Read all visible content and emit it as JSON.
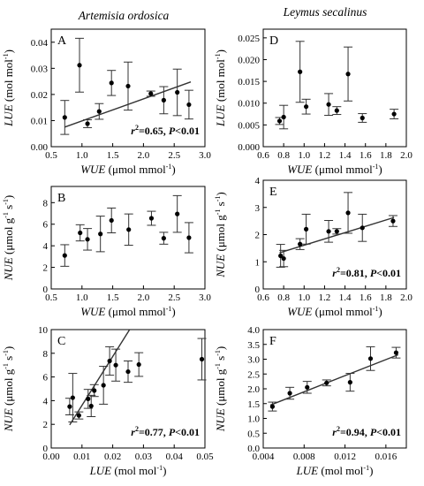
{
  "columns": {
    "left_title": "Artemisia ordosica",
    "right_title": "Leymus secalinus"
  },
  "chart_data": [
    {
      "panel": "A",
      "type": "scatter",
      "xlabel_main": "WUE",
      "xlabel_unit": "(μmol mmol",
      "ylabel_main": "LUE",
      "ylabel_unit": "(mol mol",
      "xlim": [
        0.5,
        3.0
      ],
      "ylim": [
        0.0,
        0.045
      ],
      "xticks": [
        "0.5",
        "1.0",
        "1.5",
        "2.0",
        "2.5",
        "3.0"
      ],
      "yticks": [
        "0.00",
        "0.01",
        "0.02",
        "0.03",
        "0.04"
      ],
      "points": [
        {
          "x": 0.72,
          "y": 0.0112,
          "err": 0.0065
        },
        {
          "x": 0.96,
          "y": 0.0312,
          "err": 0.0103
        },
        {
          "x": 1.09,
          "y": 0.0088,
          "err": 0.0015
        },
        {
          "x": 1.28,
          "y": 0.0135,
          "err": 0.003
        },
        {
          "x": 1.48,
          "y": 0.0244,
          "err": 0.0048
        },
        {
          "x": 1.75,
          "y": 0.0232,
          "err": 0.0092
        },
        {
          "x": 2.12,
          "y": 0.0203,
          "err": 0.001
        },
        {
          "x": 2.33,
          "y": 0.0178,
          "err": 0.0052
        },
        {
          "x": 2.55,
          "y": 0.0208,
          "err": 0.0089
        },
        {
          "x": 2.74,
          "y": 0.0161,
          "err": 0.0055
        }
      ],
      "fit": {
        "x0": 0.72,
        "y0": 0.0075,
        "x1": 2.77,
        "y1": 0.0248
      },
      "annotation": {
        "r": "r",
        "sup": "2",
        "text": "=0.65, ",
        "p": "P",
        "ptext": "<0.01"
      }
    },
    {
      "panel": "D",
      "type": "scatter",
      "xlabel_main": "WUE",
      "xlabel_unit": "(μmol mmol",
      "ylabel_main": "LUE",
      "ylabel_unit": "(mol mol",
      "xlim": [
        0.6,
        2.0
      ],
      "ylim": [
        0.0,
        0.027
      ],
      "xticks": [
        "0.6",
        "0.8",
        "1.0",
        "1.2",
        "1.4",
        "1.6",
        "1.8",
        "2.0"
      ],
      "yticks": [
        "0.000",
        "0.005",
        "0.010",
        "0.015",
        "0.020",
        "0.025"
      ],
      "points": [
        {
          "x": 0.76,
          "y": 0.0059,
          "err": 0.0008
        },
        {
          "x": 0.8,
          "y": 0.0068,
          "err": 0.0027
        },
        {
          "x": 0.96,
          "y": 0.0172,
          "err": 0.007
        },
        {
          "x": 1.02,
          "y": 0.0092,
          "err": 0.0017
        },
        {
          "x": 1.24,
          "y": 0.0097,
          "err": 0.0025
        },
        {
          "x": 1.32,
          "y": 0.0083,
          "err": 0.0009
        },
        {
          "x": 1.43,
          "y": 0.0167,
          "err": 0.0062
        },
        {
          "x": 1.57,
          "y": 0.0066,
          "err": 0.001
        },
        {
          "x": 1.88,
          "y": 0.0075,
          "err": 0.0011
        }
      ],
      "fit": null,
      "annotation": null
    },
    {
      "panel": "B",
      "type": "scatter",
      "xlabel_main": "WUE",
      "xlabel_unit": "(μmol mmol",
      "ylabel_main": "NUE",
      "ylabel_unit": "(μmol g",
      "xlim": [
        0.5,
        3.0
      ],
      "ylim": [
        0,
        9.5
      ],
      "xticks": [
        "0.5",
        "1.0",
        "1.5",
        "2.0",
        "2.5",
        "3.0"
      ],
      "yticks": [
        "0",
        "2",
        "4",
        "6",
        "8"
      ],
      "points": [
        {
          "x": 0.72,
          "y": 3.1,
          "err": 1.0
        },
        {
          "x": 0.97,
          "y": 5.2,
          "err": 0.75
        },
        {
          "x": 1.09,
          "y": 4.6,
          "err": 1.0
        },
        {
          "x": 1.3,
          "y": 5.1,
          "err": 1.65
        },
        {
          "x": 1.48,
          "y": 6.35,
          "err": 1.15
        },
        {
          "x": 1.76,
          "y": 5.5,
          "err": 1.45
        },
        {
          "x": 2.13,
          "y": 6.55,
          "err": 0.65
        },
        {
          "x": 2.33,
          "y": 4.7,
          "err": 0.55
        },
        {
          "x": 2.55,
          "y": 6.95,
          "err": 1.7
        },
        {
          "x": 2.74,
          "y": 4.75,
          "err": 1.4
        }
      ],
      "fit": null,
      "annotation": null
    },
    {
      "panel": "E",
      "type": "scatter",
      "xlabel_main": "WUE",
      "xlabel_unit": "(μmol mmol",
      "ylabel_main": "NUE",
      "ylabel_unit": "(μmol g",
      "xlim": [
        0.6,
        2.0
      ],
      "ylim": [
        0,
        4
      ],
      "xticks": [
        "0.6",
        "0.8",
        "1.0",
        "1.2",
        "1.4",
        "1.6",
        "1.8",
        "2.0"
      ],
      "yticks": [
        "0",
        "1",
        "2",
        "3",
        "4"
      ],
      "points": [
        {
          "x": 0.77,
          "y": 1.22,
          "err": 0.42
        },
        {
          "x": 0.8,
          "y": 1.12,
          "err": 0.3
        },
        {
          "x": 0.96,
          "y": 1.65,
          "err": 0.2
        },
        {
          "x": 1.02,
          "y": 2.2,
          "err": 0.55
        },
        {
          "x": 1.24,
          "y": 2.12,
          "err": 0.4
        },
        {
          "x": 1.32,
          "y": 2.12,
          "err": 0.1
        },
        {
          "x": 1.43,
          "y": 2.8,
          "err": 0.75
        },
        {
          "x": 1.57,
          "y": 2.25,
          "err": 0.5
        },
        {
          "x": 1.87,
          "y": 2.5,
          "err": 0.2
        }
      ],
      "fit": {
        "x0": 0.76,
        "y0": 1.33,
        "x1": 1.88,
        "y1": 2.63
      },
      "annotation": {
        "r": "r",
        "sup": "2",
        "text": "=0.81, ",
        "p": "P",
        "ptext": "<0.01"
      }
    },
    {
      "panel": "C",
      "type": "scatter",
      "xlabel_main": "LUE",
      "xlabel_unit": "(mol mol",
      "ylabel_main": "NUE",
      "ylabel_unit": "(μmol g",
      "xlim": [
        0.0,
        0.05
      ],
      "ylim": [
        0,
        10
      ],
      "xticks": [
        "0.00",
        "0.01",
        "0.02",
        "0.03",
        "0.04",
        "0.05"
      ],
      "yticks": [
        "0",
        "2",
        "4",
        "6",
        "8",
        "10"
      ],
      "points": [
        {
          "x": 0.006,
          "y": 3.5,
          "err": 0.7
        },
        {
          "x": 0.007,
          "y": 4.25,
          "err": 2.05
        },
        {
          "x": 0.009,
          "y": 2.75,
          "err": 0.3
        },
        {
          "x": 0.012,
          "y": 4.15,
          "err": 0.8
        },
        {
          "x": 0.013,
          "y": 3.55,
          "err": 0.9
        },
        {
          "x": 0.014,
          "y": 4.85,
          "err": 0.5
        },
        {
          "x": 0.017,
          "y": 5.3,
          "err": 1.6
        },
        {
          "x": 0.019,
          "y": 7.35,
          "err": 1.2
        },
        {
          "x": 0.021,
          "y": 7.0,
          "err": 1.35
        },
        {
          "x": 0.025,
          "y": 6.45,
          "err": 0.9
        },
        {
          "x": 0.0285,
          "y": 7.05,
          "err": 1.0
        },
        {
          "x": 0.049,
          "y": 7.5,
          "err": 1.75
        }
      ],
      "fit": {
        "x0": 0.006,
        "y0": 1.95,
        "x1": 0.0255,
        "y1": 10.0
      },
      "annotation": {
        "r": "r",
        "sup": "2",
        "text": "=0.77, ",
        "p": "P",
        "ptext": "<0.01"
      }
    },
    {
      "panel": "F",
      "type": "scatter",
      "xlabel_main": "LUE",
      "xlabel_unit": "(mol mol",
      "ylabel_main": "NUE",
      "ylabel_unit": "(μmol g",
      "xlim": [
        0.004,
        0.018
      ],
      "ylim": [
        0.0,
        4.0
      ],
      "xticks": [
        "0.004",
        "0.008",
        "0.012",
        "0.016"
      ],
      "yticks": [
        "0.0",
        "0.5",
        "1.0",
        "1.5",
        "2.0",
        "2.5",
        "3.0",
        "3.5",
        "4.0"
      ],
      "points": [
        {
          "x": 0.0049,
          "y": 1.4,
          "err": 0.15
        },
        {
          "x": 0.0066,
          "y": 1.85,
          "err": 0.2
        },
        {
          "x": 0.0083,
          "y": 2.05,
          "err": 0.2
        },
        {
          "x": 0.0102,
          "y": 2.2,
          "err": 0.1
        },
        {
          "x": 0.0125,
          "y": 2.22,
          "err": 0.3
        },
        {
          "x": 0.0145,
          "y": 3.02,
          "err": 0.4
        },
        {
          "x": 0.017,
          "y": 3.22,
          "err": 0.18
        }
      ],
      "fit": {
        "x0": 0.0047,
        "y0": 1.45,
        "x1": 0.0172,
        "y1": 3.15
      },
      "annotation": {
        "r": "r",
        "sup": "2",
        "text": "=0.94, ",
        "p": "P",
        "ptext": "<0.01"
      }
    }
  ]
}
